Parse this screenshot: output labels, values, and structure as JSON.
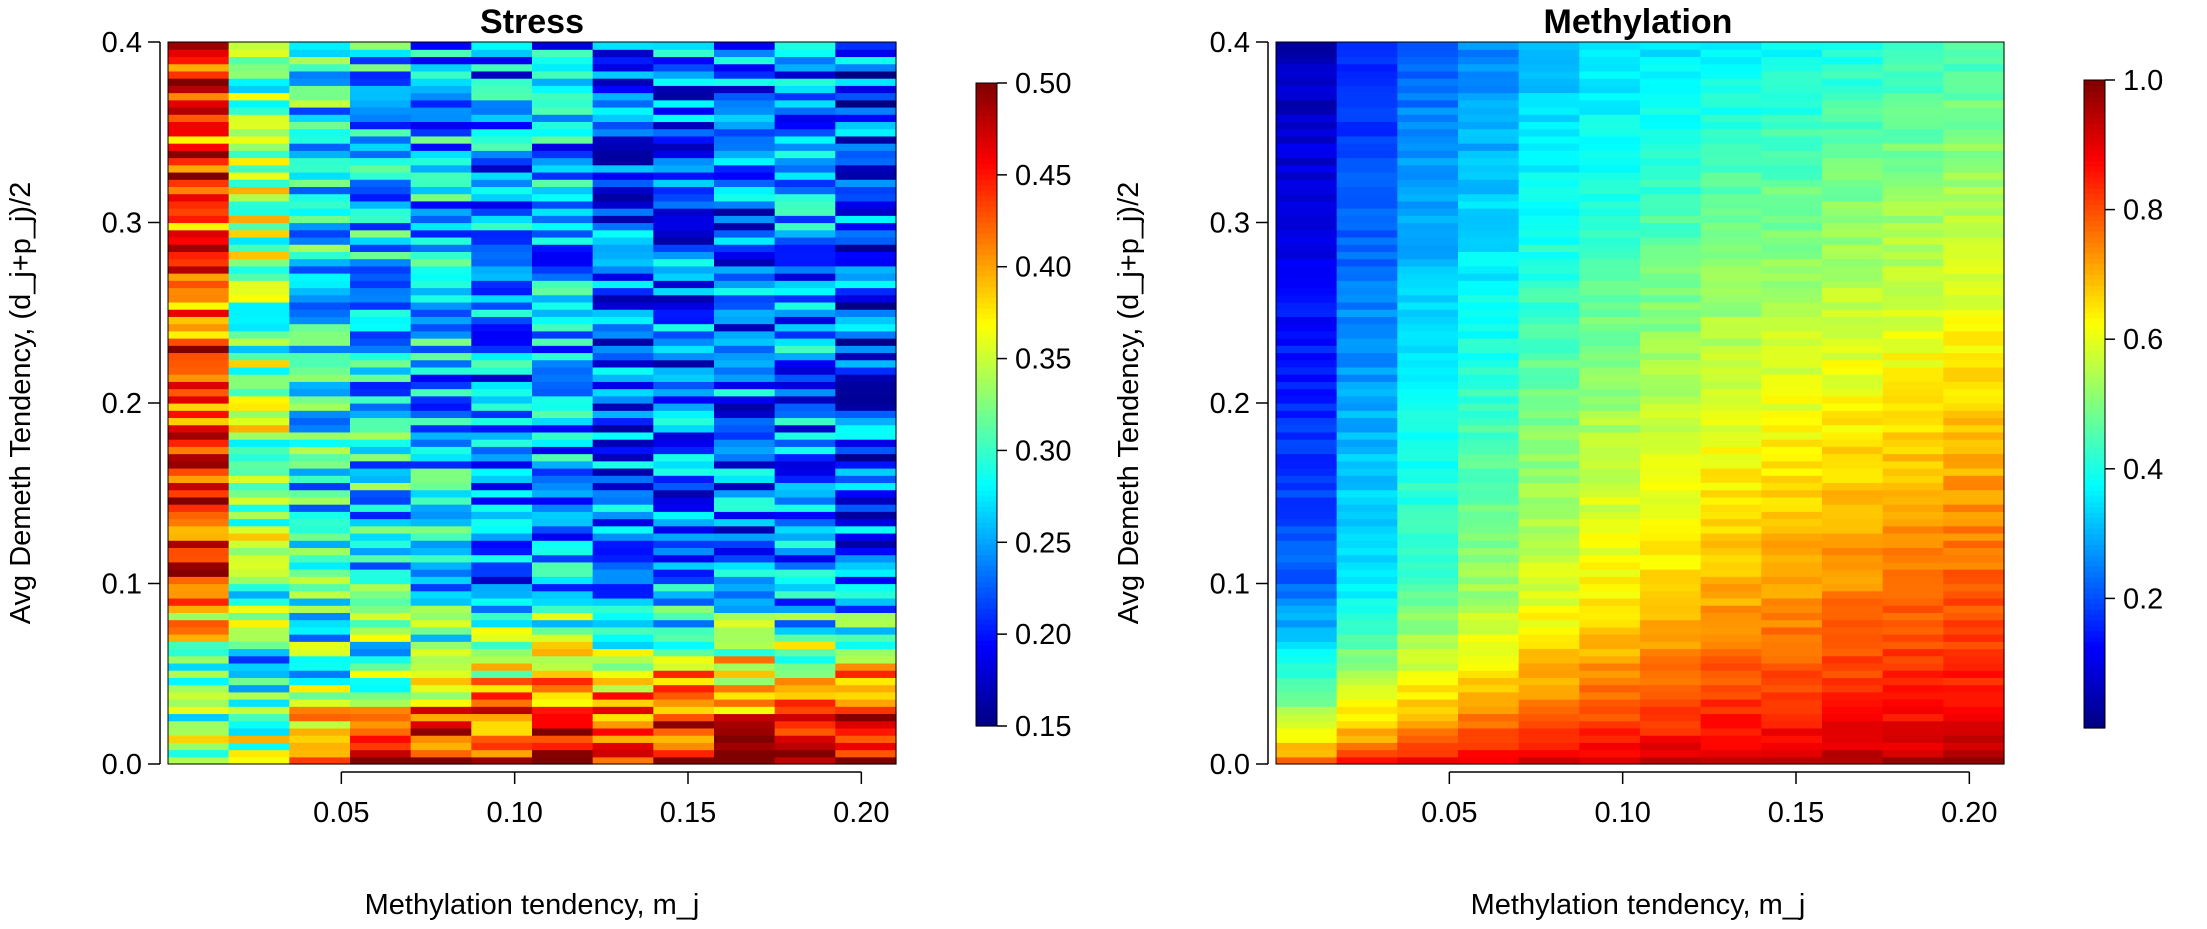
{
  "chart_data": [
    {
      "type": "heatmap",
      "title": "Stress",
      "xlabel": "Methylation tendency, m_j",
      "ylabel": "Avg Demeth Tendency, (d_j+p_j)/2",
      "x_ticks": [
        "0.05",
        "0.10",
        "0.15",
        "0.20"
      ],
      "y_ticks": [
        "0.0",
        "0.1",
        "0.2",
        "0.3",
        "0.4"
      ],
      "xlim": [
        0.0,
        0.21
      ],
      "ylim": [
        0.0,
        0.4
      ],
      "colorbar": {
        "range": [
          0.15,
          0.5
        ],
        "ticks": [
          "0.15",
          "0.20",
          "0.25",
          "0.30",
          "0.35",
          "0.40",
          "0.45",
          "0.50"
        ],
        "colormap": "jet"
      },
      "x_columns": [
        0.01,
        0.0275,
        0.045,
        0.0625,
        0.08,
        0.0975,
        0.115,
        0.1325,
        0.15,
        0.1675,
        0.185,
        0.2025
      ],
      "y_rows": 100,
      "column_trend": {
        "near_zero_y": [
          0.32,
          0.36,
          0.43,
          0.47,
          0.48,
          0.48,
          0.49,
          0.49,
          0.49,
          0.5,
          0.5,
          0.5
        ],
        "at_y_0.05": [
          0.3,
          0.27,
          0.3,
          0.32,
          0.36,
          0.37,
          0.37,
          0.38,
          0.38,
          0.38,
          0.36,
          0.38
        ],
        "at_y_0.1_and_above": [
          0.44,
          0.33,
          0.28,
          0.27,
          0.26,
          0.24,
          0.25,
          0.23,
          0.23,
          0.23,
          0.24,
          0.22
        ]
      },
      "grid": false
    },
    {
      "type": "heatmap",
      "title": "Methylation",
      "xlabel": "Methylation tendency, m_j",
      "ylabel": "Avg Demeth Tendency, (d_j+p_j)/2",
      "x_ticks": [
        "0.05",
        "0.10",
        "0.15",
        "0.20"
      ],
      "y_ticks": [
        "0.0",
        "0.1",
        "0.2",
        "0.3",
        "0.4"
      ],
      "xlim": [
        0.0,
        0.21
      ],
      "ylim": [
        0.0,
        0.4
      ],
      "colorbar": {
        "range": [
          0.0,
          1.0
        ],
        "ticks": [
          "0.2",
          "0.4",
          "0.6",
          "0.8",
          "1.0"
        ],
        "colormap": "jet"
      },
      "x_columns": [
        0.01,
        0.0275,
        0.045,
        0.0625,
        0.08,
        0.0975,
        0.115,
        0.1325,
        0.15,
        0.1675,
        0.185,
        0.2025
      ],
      "y_rows": 100,
      "column_trend": {
        "near_zero_y": [
          0.85,
          0.9,
          0.93,
          0.95,
          0.96,
          0.96,
          0.97,
          0.97,
          0.97,
          0.98,
          0.98,
          0.98
        ],
        "at_y_0.1": [
          0.22,
          0.36,
          0.45,
          0.52,
          0.58,
          0.63,
          0.66,
          0.7,
          0.72,
          0.74,
          0.76,
          0.78
        ],
        "at_y_0.4": [
          0.05,
          0.15,
          0.22,
          0.25,
          0.3,
          0.33,
          0.35,
          0.37,
          0.38,
          0.4,
          0.42,
          0.44
        ]
      },
      "grid": false
    }
  ]
}
